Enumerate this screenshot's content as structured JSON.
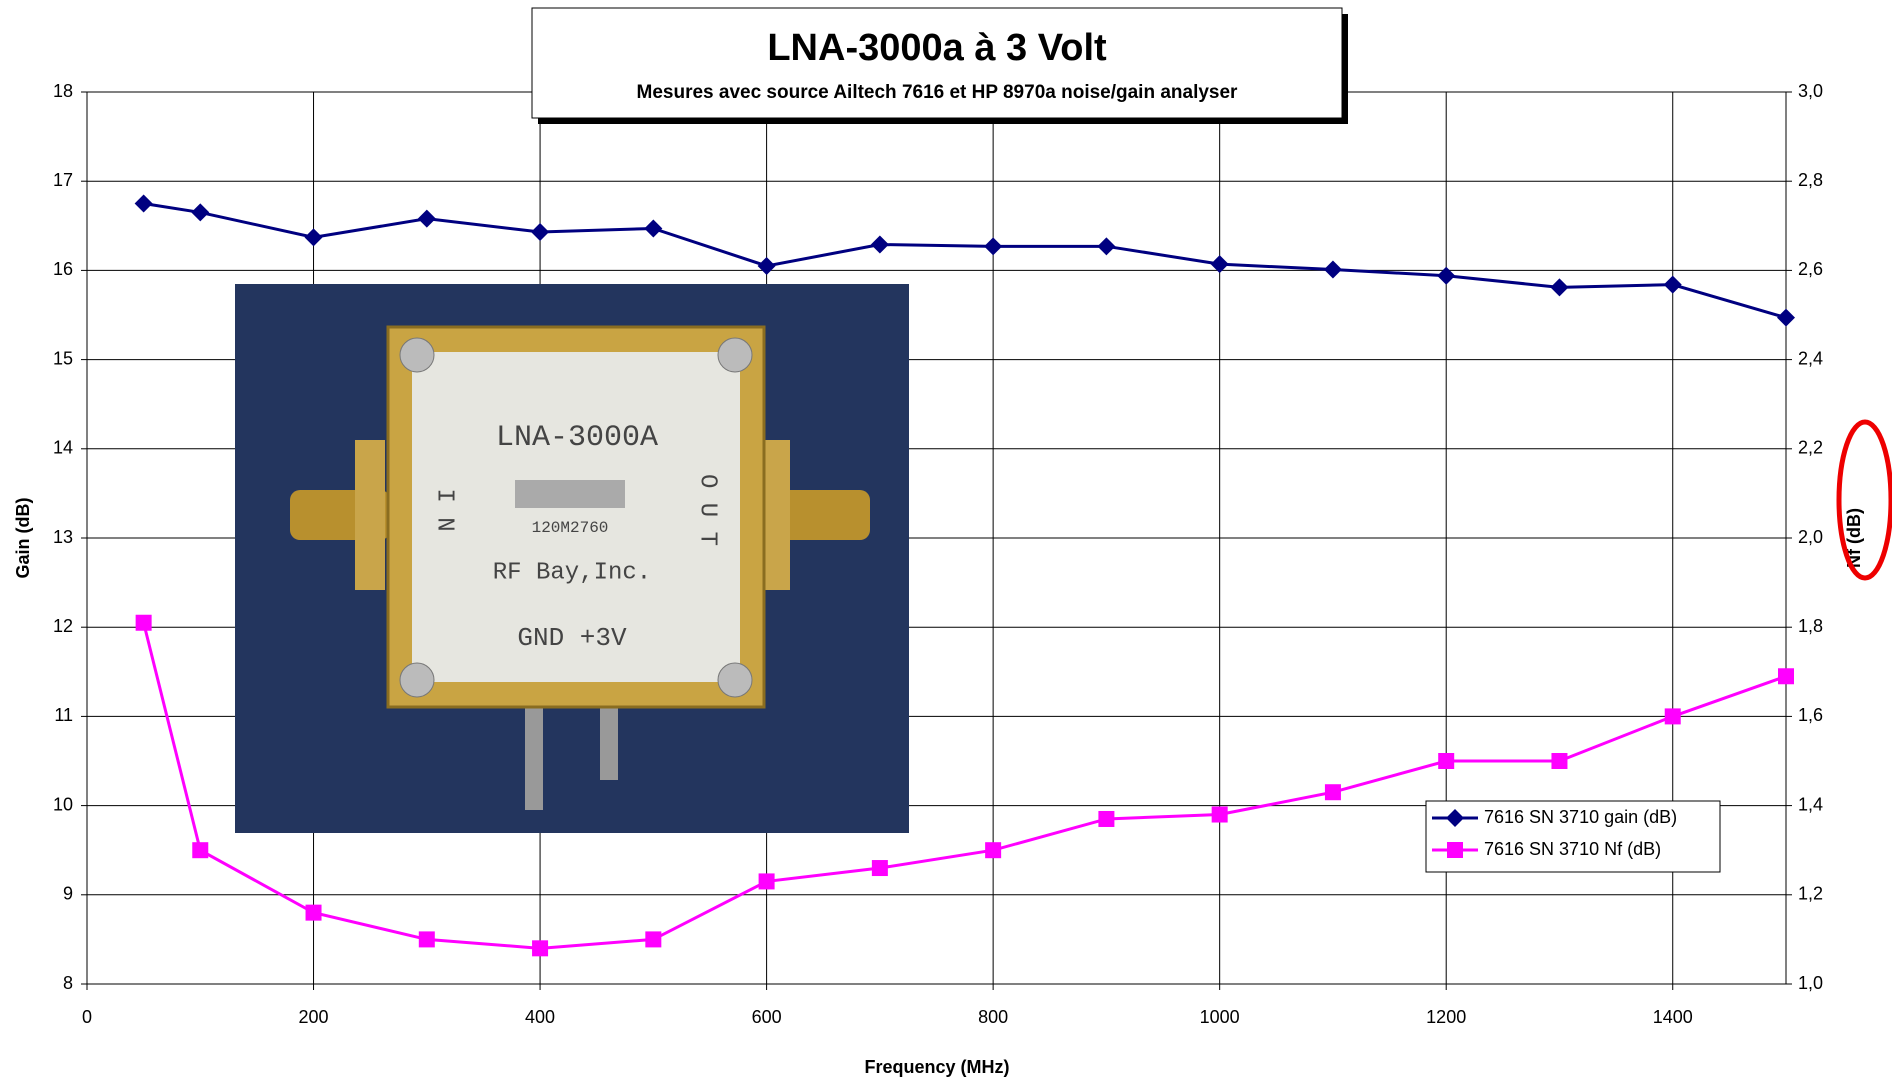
{
  "chart_data": {
    "type": "line",
    "title": "LNA-3000a à 3 Volt",
    "subtitle": "Mesures avec source Ailtech 7616 et HP 8970a noise/gain analyser",
    "x_label": "Frequency (MHz)",
    "y_label": "Gain (dB)",
    "y2_label": "Nf (dB)",
    "x": [
      50,
      100,
      200,
      300,
      400,
      500,
      600,
      700,
      800,
      900,
      1000,
      1100,
      1200,
      1300,
      1400,
      1500
    ],
    "series": [
      {
        "name": "7616 SN 3710 gain (dB)",
        "color": "#000080",
        "marker": "diamond",
        "values": [
          16.75,
          16.65,
          16.37,
          16.58,
          16.43,
          16.47,
          16.05,
          16.29,
          16.27,
          16.27,
          16.07,
          16.01,
          15.94,
          15.81,
          15.84,
          15.47
        ]
      },
      {
        "name": "7616 SN 3710 Nf (dB)",
        "color": "#ff00ff",
        "marker": "square",
        "axis": "y2",
        "values": [
          1.81,
          1.3,
          1.16,
          1.1,
          1.08,
          1.1,
          1.23,
          1.26,
          1.3,
          1.37,
          1.38,
          1.43,
          1.5,
          1.5,
          1.6,
          1.69
        ]
      }
    ],
    "xlim": [
      0,
      1500
    ],
    "xticks": [
      0,
      200,
      400,
      600,
      800,
      1000,
      1200,
      1400
    ],
    "ylim": [
      8,
      18
    ],
    "yticks": [
      8,
      9,
      10,
      11,
      12,
      13,
      14,
      15,
      16,
      17,
      18
    ],
    "y2lim": [
      1.0,
      3.0
    ],
    "y2ticks": [
      {
        "value": 1.0,
        "label": "1,0"
      },
      {
        "value": 1.2,
        "label": "1,2"
      },
      {
        "value": 1.4,
        "label": "1,4"
      },
      {
        "value": 1.6,
        "label": "1,6"
      },
      {
        "value": 1.8,
        "label": "1,8"
      },
      {
        "value": 2.0,
        "label": "2,0"
      },
      {
        "value": 2.2,
        "label": "2,2"
      },
      {
        "value": 2.4,
        "label": "2,4"
      },
      {
        "value": 2.6,
        "label": "2,6"
      },
      {
        "value": 2.8,
        "label": "2,8"
      },
      {
        "value": 3.0,
        "label": "3,0"
      }
    ],
    "grid": true,
    "legend": "lower right"
  },
  "photo": {
    "model": "LNA-3000A",
    "in": "I N",
    "out": "O U T",
    "serial": "120M2760",
    "maker": "RF Bay,Inc.",
    "pins": "GND +3V"
  }
}
